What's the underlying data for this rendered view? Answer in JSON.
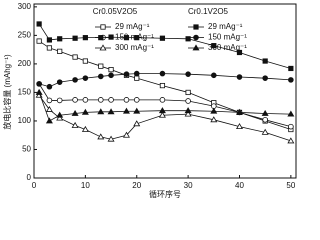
{
  "chart_data": {
    "type": "line",
    "x_label": "循环序号",
    "y_label": "放电比容量 (mAhg⁻¹)",
    "xlim": [
      0,
      51
    ],
    "xticks": [
      0,
      10,
      20,
      30,
      40,
      50
    ],
    "ylim": [
      0,
      305
    ],
    "yticks": [
      0,
      50,
      100,
      150,
      200,
      250,
      300
    ],
    "x": [
      1,
      3,
      5,
      8,
      10,
      13,
      15,
      18,
      20,
      25,
      30,
      35,
      40,
      45,
      50
    ],
    "color": "#111111",
    "groups": [
      {
        "name": "Cr0.05V2O5",
        "series": [
          {
            "name": "29 mAg⁻¹",
            "marker": "square",
            "filled": false,
            "values": [
              240,
              228,
              222,
              212,
              205,
              196,
              190,
              180,
              175,
              162,
              150,
              132,
              115,
              100,
              85
            ]
          },
          {
            "name": "150 mAg⁻¹",
            "marker": "circle",
            "filled": false,
            "values": [
              165,
              136,
              136,
              137,
              137,
              137,
              137,
              137,
              137,
              137,
              135,
              126,
              115,
              102,
              90
            ]
          },
          {
            "name": "300 mAg⁻¹",
            "marker": "triangle",
            "filled": false,
            "values": [
              145,
              120,
              105,
              92,
              85,
              72,
              68,
              75,
              95,
              110,
              112,
              102,
              90,
              80,
              65
            ]
          }
        ]
      },
      {
        "name": "Cr0.1V2O5",
        "series": [
          {
            "name": "29 mAg⁻¹",
            "marker": "square",
            "filled": true,
            "values": [
              270,
              242,
              244,
              245,
              246,
              246,
              247,
              246,
              246,
              245,
              244,
              232,
              220,
              205,
              192
            ]
          },
          {
            "name": "150 mAg⁻¹",
            "marker": "circle",
            "filled": true,
            "values": [
              165,
              160,
              168,
              172,
              175,
              178,
              180,
              182,
              183,
              183,
              182,
              180,
              177,
              175,
              172
            ]
          },
          {
            "name": "300 mAg⁻¹",
            "marker": "triangle",
            "filled": true,
            "values": [
              150,
              100,
              110,
              113,
              115,
              116,
              116,
              117,
              117,
              118,
              118,
              117,
              115,
              113,
              112
            ]
          }
        ]
      }
    ]
  }
}
